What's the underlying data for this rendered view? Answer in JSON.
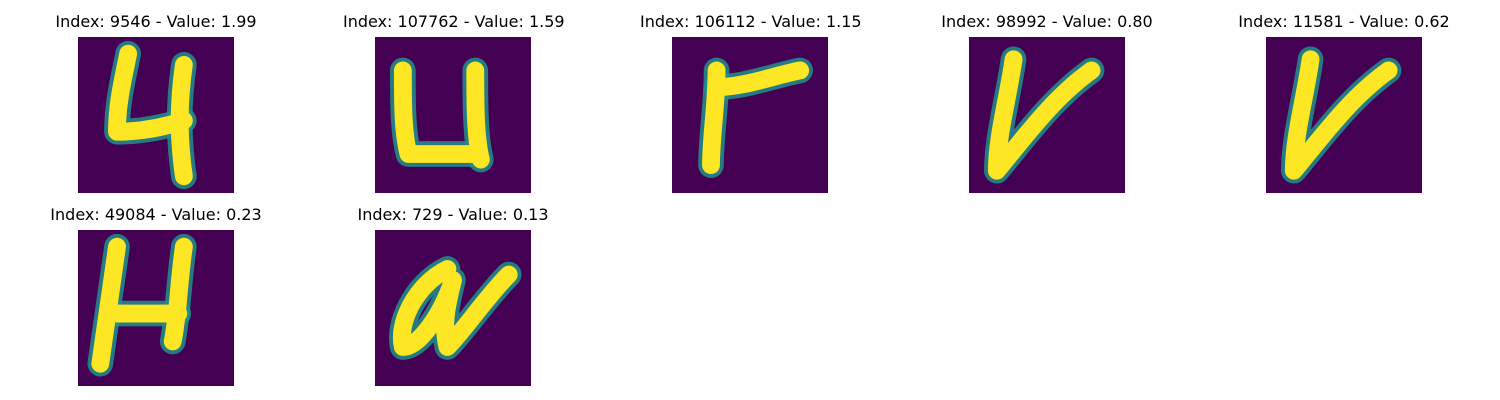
{
  "chart_data": {
    "type": "image-grid",
    "rows": 2,
    "cols": 5,
    "colormap": {
      "background": "#440154",
      "mid": "#21918c",
      "foreground": "#fde725"
    },
    "panels": [
      {
        "title": "Index: 9546 - Value: 1.99",
        "index": 9546,
        "value": 1.99,
        "glyph": "4"
      },
      {
        "title": "Index: 107762 - Value: 1.59",
        "index": 107762,
        "value": 1.59,
        "glyph": "u"
      },
      {
        "title": "Index: 106112 - Value: 1.15",
        "index": 106112,
        "value": 1.15,
        "glyph": "r"
      },
      {
        "title": "Index: 98992 - Value: 0.80",
        "index": 98992,
        "value": 0.8,
        "glyph": "v"
      },
      {
        "title": "Index: 11581 - Value: 0.62",
        "index": 11581,
        "value": 0.62,
        "glyph": "v"
      },
      {
        "title": "Index: 49084 - Value: 0.23",
        "index": 49084,
        "value": 0.23,
        "glyph": "H"
      },
      {
        "title": "Index: 729 - Value: 0.13",
        "index": 729,
        "value": 0.13,
        "glyph": "a"
      }
    ]
  }
}
